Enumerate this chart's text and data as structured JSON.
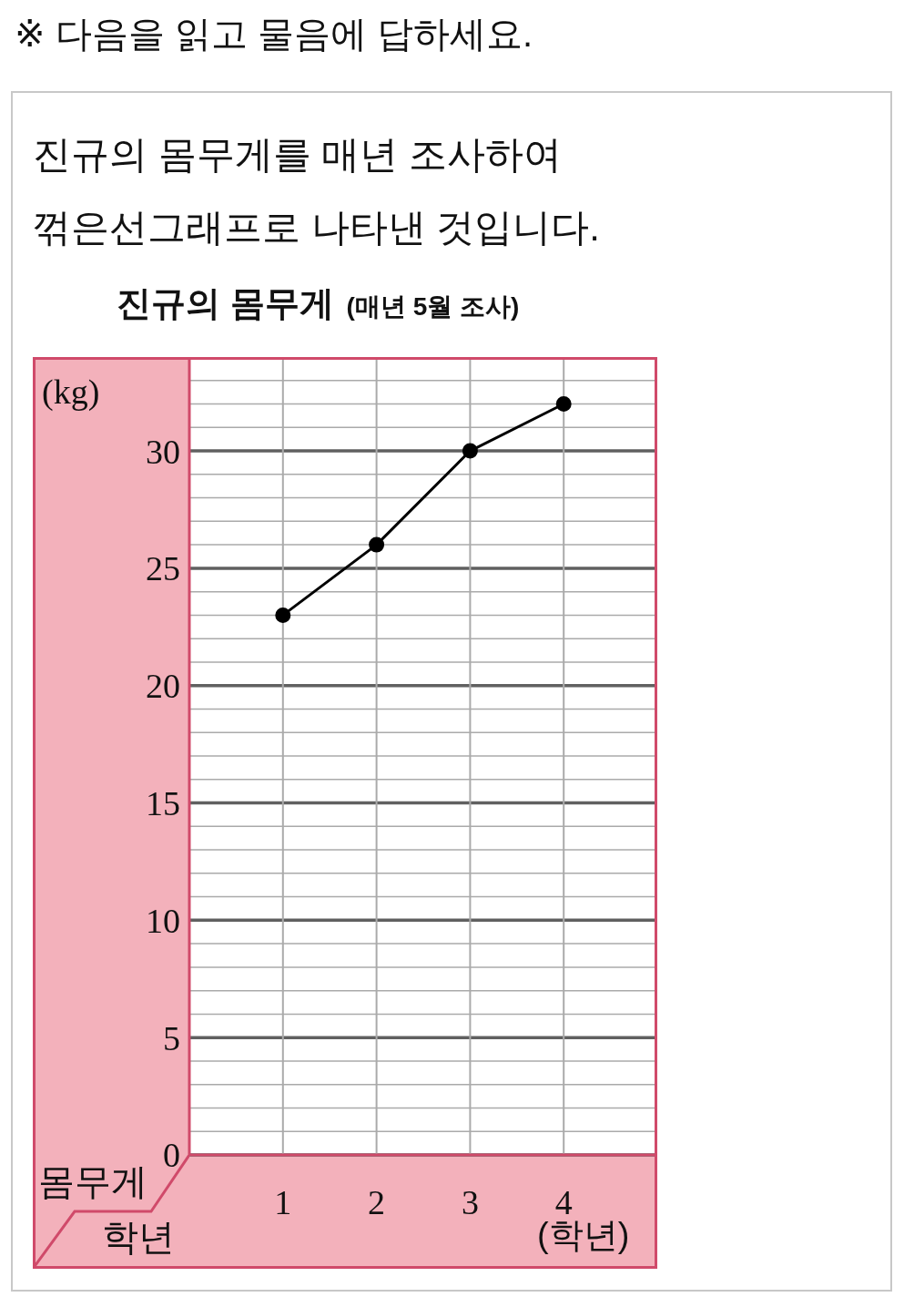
{
  "chart_data": {
    "type": "line",
    "title": "진규의 몸무게",
    "subtitle": "(매년 5월 조사)",
    "xlabel": "학년",
    "ylabel": "몸무게",
    "annotations": [
      "※ 다음을 읽고 물음에 답하세요.",
      "진규의 몸무게를 매년 조사하여 꺾은선그래프로 나타낸 것입니다.",
      "(kg)",
      "(학년)"
    ],
    "x": [
      1,
      2,
      3,
      4
    ],
    "series": [
      {
        "color": "#000000",
        "values": [
          23,
          26,
          30,
          32
        ]
      }
    ],
    "xlim": [
      0,
      5
    ],
    "xticks": [
      1,
      2,
      3,
      4
    ],
    "ylim": [
      0,
      34
    ],
    "yticks": [
      0,
      {
        "value": 1,
        "label": null
      },
      {
        "value": 2,
        "label": null
      },
      {
        "value": 3,
        "label": null
      },
      {
        "value": 4,
        "label": null
      },
      5,
      {
        "value": 6,
        "label": null
      },
      {
        "value": 7,
        "label": null
      },
      {
        "value": 8,
        "label": null
      },
      {
        "value": 9,
        "label": null
      },
      10,
      {
        "value": 11,
        "label": null
      },
      {
        "value": 12,
        "label": null
      },
      {
        "value": 13,
        "label": null
      },
      {
        "value": 14,
        "label": null
      },
      15,
      {
        "value": 16,
        "label": null
      },
      {
        "value": 17,
        "label": null
      },
      {
        "value": 18,
        "label": null
      },
      {
        "value": 19,
        "label": null
      },
      20,
      {
        "value": 21,
        "label": null
      },
      {
        "value": 22,
        "label": null
      },
      {
        "value": 23,
        "label": null
      },
      {
        "value": 24,
        "label": null
      },
      25,
      {
        "value": 26,
        "label": null
      },
      {
        "value": 27,
        "label": null
      },
      {
        "value": 28,
        "label": null
      },
      {
        "value": 29,
        "label": null
      },
      30,
      {
        "value": 31,
        "label": null
      },
      {
        "value": 32,
        "label": null
      },
      {
        "value": 33,
        "label": null
      },
      {
        "value": 34,
        "label": null
      }
    ],
    "grid": true,
    "marker": "circle",
    "line_style": "solid"
  }
}
